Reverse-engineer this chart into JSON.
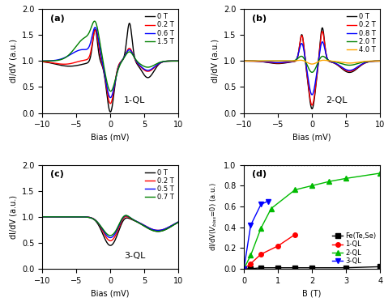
{
  "fig_size": [
    4.74,
    3.73
  ],
  "dpi": 100,
  "panel_a": {
    "label": "1-QL",
    "legend_labels": [
      "0 T",
      "0.2 T",
      "0.6 T",
      "1.5 T"
    ],
    "colors": [
      "black",
      "red",
      "blue",
      "green"
    ],
    "ylim": [
      0.0,
      2.0
    ],
    "xlim": [
      -10,
      10
    ]
  },
  "panel_b": {
    "label": "2-QL",
    "legend_labels": [
      "0 T",
      "0.2 T",
      "0.8 T",
      "2.0 T",
      "4.0 T"
    ],
    "colors": [
      "black",
      "red",
      "blue",
      "green",
      "orange"
    ],
    "ylim": [
      0.0,
      2.0
    ],
    "xlim": [
      -10,
      10
    ]
  },
  "panel_c": {
    "label": "3-QL",
    "legend_labels": [
      "0 T",
      "0.2 T",
      "0.5 T",
      "0.7 T"
    ],
    "colors": [
      "black",
      "red",
      "blue",
      "green"
    ],
    "ylim": [
      0.0,
      2.0
    ],
    "xlim": [
      -10,
      10
    ]
  },
  "panel_d": {
    "xlabel": "B (T)",
    "ylim": [
      0.0,
      1.0
    ],
    "xlim": [
      0,
      4
    ],
    "dotted_y": 1.0,
    "legend_labels": [
      "Fe(Te,Se)",
      "1-QL",
      "2-QL",
      "3-QL"
    ],
    "colors": [
      "black",
      "red",
      "#00bb00",
      "blue"
    ],
    "fe_B": [
      0.0,
      0.2,
      0.5,
      1.0,
      1.5,
      2.0,
      3.0,
      4.0
    ],
    "fe_vals": [
      0.0,
      0.0,
      0.01,
      0.01,
      0.01,
      0.01,
      0.01,
      0.02
    ],
    "ql1_B": [
      0.0,
      0.2,
      0.5,
      1.0,
      1.5
    ],
    "ql1_vals": [
      0.0,
      0.05,
      0.14,
      0.22,
      0.33
    ],
    "ql2_B": [
      0.0,
      0.2,
      0.5,
      0.8,
      1.5,
      2.0,
      2.5,
      3.0,
      4.0
    ],
    "ql2_vals": [
      0.0,
      0.13,
      0.39,
      0.58,
      0.76,
      0.8,
      0.84,
      0.87,
      0.92
    ],
    "ql3_B": [
      0.0,
      0.2,
      0.5,
      0.7
    ],
    "ql3_vals": [
      0.0,
      0.42,
      0.62,
      0.65
    ]
  },
  "xlabel_bias": "Bias (mV)",
  "ylabel_dIdV": "dI/dV (a.u.)"
}
